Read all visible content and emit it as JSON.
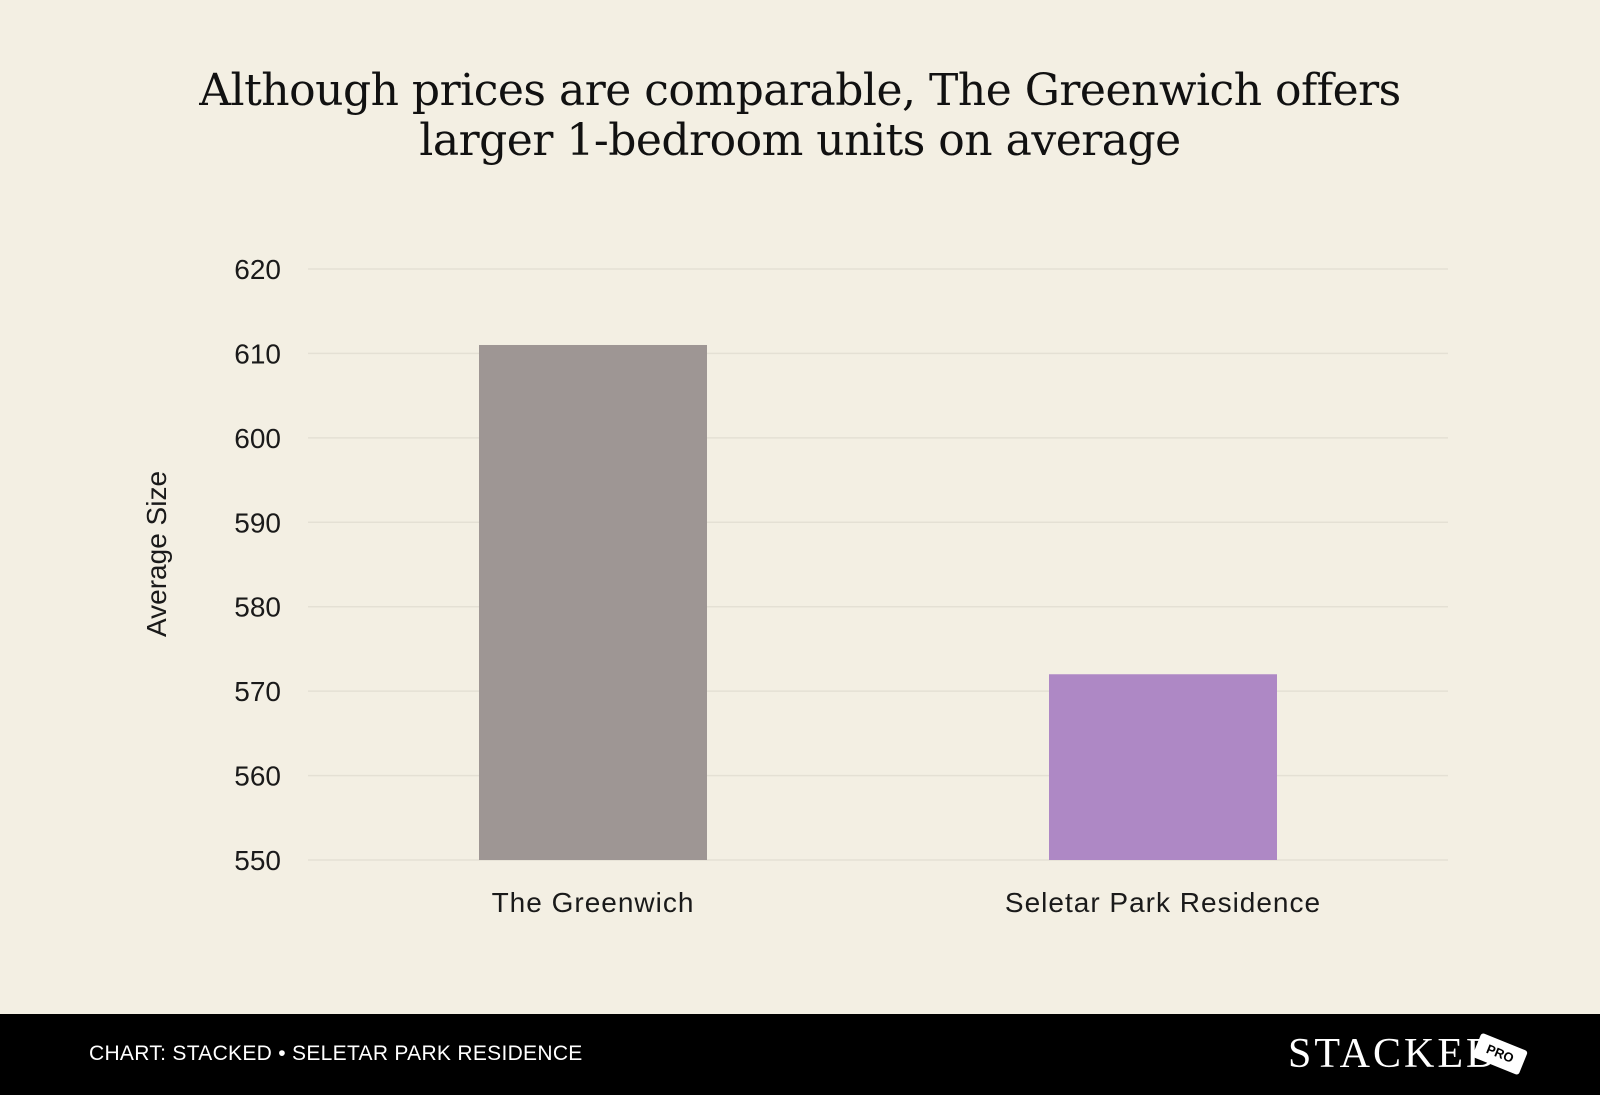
{
  "chart_data": {
    "type": "bar",
    "title_lines": [
      "Although prices are comparable, The Greenwich offers",
      "larger 1-bedroom units on average"
    ],
    "categories": [
      "The Greenwich",
      "Seletar Park Residence"
    ],
    "values": [
      611,
      572
    ],
    "bar_colors": [
      "#9e9694",
      "#ae88c5"
    ],
    "xlabel": "",
    "ylabel": "Average Size",
    "ylim": [
      550,
      620
    ],
    "yticks": [
      550,
      560,
      570,
      580,
      590,
      600,
      610,
      620
    ],
    "grid": true,
    "gridline_color": "#e4e0d4"
  },
  "footer": {
    "source": "CHART: STACKED • SELETAR PARK RESIDENCE",
    "logo": "STACKED",
    "badge": "PRO"
  },
  "colors": {
    "background": "#f3efe3",
    "footer_background": "#000000"
  }
}
